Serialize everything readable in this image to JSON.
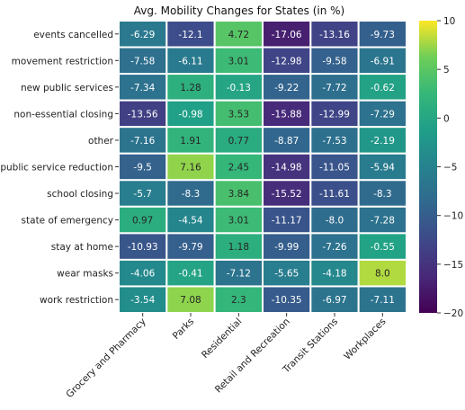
{
  "chart_data": {
    "type": "heatmap",
    "title": "Avg. Mobility Changes for States (in %)",
    "colormap": "viridis",
    "vmin": -20,
    "vmax": 10,
    "rows": [
      "events cancelled",
      "movement restriction",
      "new public services",
      "non-essential closing",
      "other",
      "public service reduction",
      "school closing",
      "state of emergency",
      "stay at home",
      "wear masks",
      "work restriction"
    ],
    "columns": [
      "Grocery and Pharmacy",
      "Parks",
      "Residential",
      "Retail and Recreation",
      "Transit Stations",
      "Workplaces"
    ],
    "values": [
      [
        -6.29,
        -12.1,
        4.72,
        -17.06,
        -13.16,
        -9.73
      ],
      [
        -7.58,
        -6.11,
        3.01,
        -12.98,
        -9.58,
        -6.91
      ],
      [
        -7.34,
        1.28,
        -0.13,
        -9.22,
        -7.72,
        -0.62
      ],
      [
        -13.56,
        -0.98,
        3.53,
        -15.88,
        -12.99,
        -7.29
      ],
      [
        -7.16,
        1.91,
        0.77,
        -8.87,
        -7.53,
        -2.19
      ],
      [
        -9.5,
        7.16,
        2.45,
        -14.98,
        -11.05,
        -5.94
      ],
      [
        -5.7,
        -8.3,
        3.84,
        -15.52,
        -11.61,
        -8.3
      ],
      [
        0.97,
        -4.54,
        3.01,
        -11.17,
        -8.0,
        -7.28
      ],
      [
        -10.93,
        -9.79,
        1.18,
        -9.99,
        -7.26,
        -0.55
      ],
      [
        -4.06,
        -0.41,
        -7.12,
        -5.65,
        -4.18,
        8.0
      ],
      [
        -3.54,
        7.08,
        2.3,
        -10.35,
        -6.97,
        -7.11
      ]
    ],
    "value_labels": [
      [
        "-6.29",
        "-12.1",
        "4.72",
        "-17.06",
        "-13.16",
        "-9.73"
      ],
      [
        "-7.58",
        "-6.11",
        "3.01",
        "-12.98",
        "-9.58",
        "-6.91"
      ],
      [
        "-7.34",
        "1.28",
        "-0.13",
        "-9.22",
        "-7.72",
        "-0.62"
      ],
      [
        "-13.56",
        "-0.98",
        "3.53",
        "-15.88",
        "-12.99",
        "-7.29"
      ],
      [
        "-7.16",
        "1.91",
        "0.77",
        "-8.87",
        "-7.53",
        "-2.19"
      ],
      [
        "-9.5",
        "7.16",
        "2.45",
        "-14.98",
        "-11.05",
        "-5.94"
      ],
      [
        "-5.7",
        "-8.3",
        "3.84",
        "-15.52",
        "-11.61",
        "-8.3"
      ],
      [
        "0.97",
        "-4.54",
        "3.01",
        "-11.17",
        "-8.0",
        "-7.28"
      ],
      [
        "-10.93",
        "-9.79",
        "1.18",
        "-9.99",
        "-7.26",
        "-0.55"
      ],
      [
        "-4.06",
        "-0.41",
        "-7.12",
        "-5.65",
        "-4.18",
        "8.0"
      ],
      [
        "-3.54",
        "7.08",
        "2.3",
        "-10.35",
        "-6.97",
        "-7.11"
      ]
    ],
    "colorbar_ticks": [
      10,
      5,
      0,
      -5,
      -10,
      -15,
      -20
    ],
    "colorbar_tick_labels": [
      "10",
      "5",
      "0",
      "−5",
      "−10",
      "−15",
      "−20"
    ],
    "grid_lines_color": "#ffffff"
  }
}
